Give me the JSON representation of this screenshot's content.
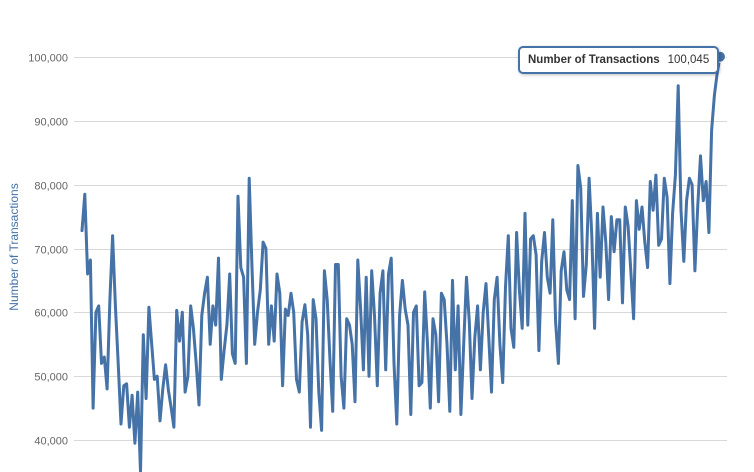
{
  "chart_data": {
    "type": "line",
    "title": "",
    "xlabel": "",
    "ylabel": "Number of Transactions",
    "ylim": [
      35000,
      100000
    ],
    "yticks": [
      "40,000",
      "50,000",
      "60,000",
      "70,000",
      "80,000",
      "90,000",
      "100,000"
    ],
    "ytick_values": [
      40000,
      50000,
      60000,
      70000,
      80000,
      90000,
      100000
    ],
    "grid": true,
    "colors": {
      "line": "#4572a7",
      "grid": "#d8d8d8",
      "axis_title": "#4572a7"
    },
    "series": [
      {
        "name": "Number of Transactions",
        "values": [
          72800,
          78500,
          66000,
          68200,
          45000,
          60000,
          61000,
          52000,
          53000,
          48000,
          62000,
          72000,
          61000,
          52000,
          42500,
          48500,
          48800,
          42000,
          47000,
          39500,
          47500,
          35000,
          56500,
          46500,
          60800,
          55000,
          49500,
          50000,
          43000,
          48000,
          51800,
          47800,
          45000,
          42000,
          60300,
          55500,
          60000,
          47500,
          50000,
          61000,
          57500,
          52000,
          45500,
          59500,
          63000,
          65500,
          55000,
          61000,
          58000,
          68500,
          49500,
          54000,
          58000,
          66000,
          53500,
          52000,
          78200,
          67000,
          65500,
          52000,
          81000,
          67500,
          55000,
          60000,
          63500,
          71000,
          70000,
          55000,
          61000,
          55500,
          66000,
          63000,
          48500,
          60500,
          59500,
          63000,
          60000,
          49500,
          47500,
          58500,
          61200,
          56500,
          42000,
          62000,
          59000,
          47500,
          41500,
          66500,
          62000,
          52500,
          44500,
          67500,
          67500,
          50000,
          45000,
          59000,
          58000,
          55000,
          46000,
          68200,
          60500,
          51000,
          65500,
          50000,
          66500,
          59500,
          48500,
          63000,
          66500,
          51000,
          66000,
          68500,
          52000,
          42500,
          59500,
          65000,
          60500,
          58000,
          44000,
          60000,
          61000,
          48500,
          49000,
          63200,
          55000,
          45000,
          59000,
          56500,
          46000,
          63000,
          62000,
          55000,
          44500,
          65000,
          51000,
          61000,
          44000,
          55000,
          65500,
          58500,
          46500,
          56000,
          61000,
          51000,
          60000,
          64500,
          56000,
          47500,
          62000,
          65500,
          55000,
          49000,
          64000,
          72000,
          57500,
          54500,
          72500,
          63500,
          57500,
          75500,
          58000,
          71500,
          72000,
          69000,
          54000,
          68000,
          72500,
          65500,
          63000,
          74500,
          58500,
          52000,
          66500,
          69500,
          63500,
          62000,
          77500,
          59000,
          83000,
          79500,
          62500,
          67500,
          81000,
          72000,
          57500,
          75500,
          65500,
          76500,
          71000,
          62000,
          75000,
          69500,
          74500,
          74500,
          61500,
          76500,
          73500,
          66500,
          59000,
          77500,
          73000,
          76500,
          71000,
          67000,
          80500,
          76000,
          81500,
          70500,
          71500,
          81000,
          78000,
          64500,
          75500,
          81500,
          95500,
          76000,
          68000,
          77500,
          81000,
          80000,
          66500,
          76500,
          84500,
          77500,
          80500,
          72500,
          88500,
          94000,
          97500,
          100045
        ]
      }
    ],
    "tooltip": {
      "name": "Number of Transactions",
      "value": "100,045"
    }
  }
}
